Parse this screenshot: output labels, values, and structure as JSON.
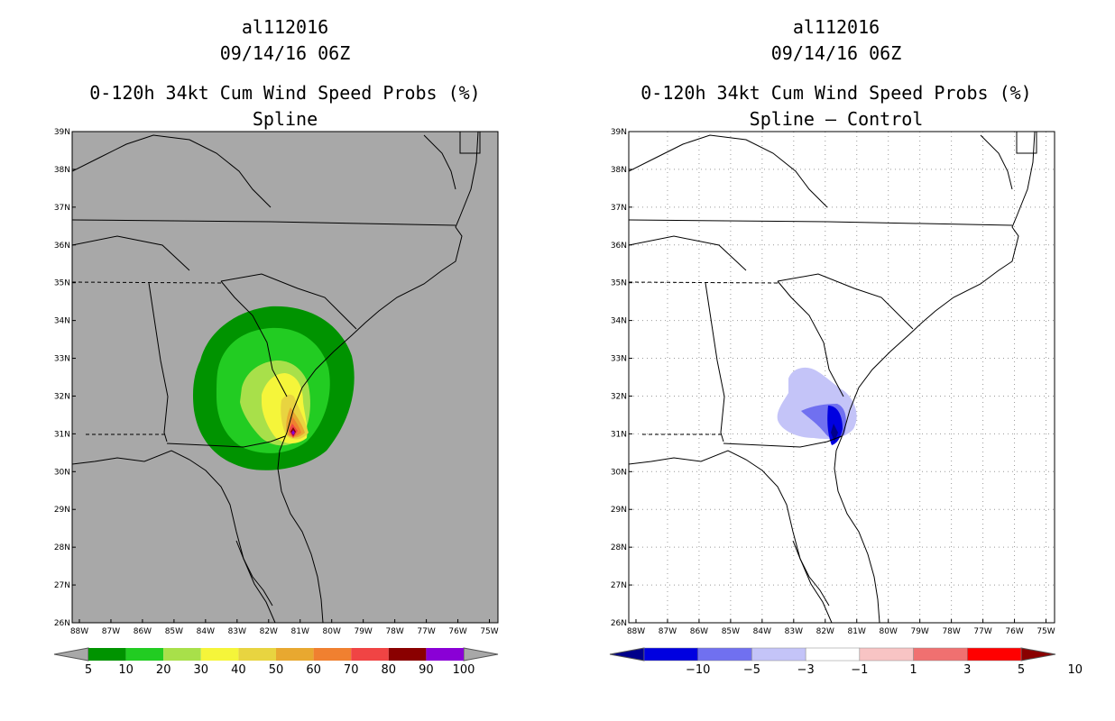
{
  "panels": [
    {
      "id": "left",
      "storm": "al112016",
      "datetime": "09/14/16 06Z",
      "product": "0-120h 34kt Cum Wind Speed Probs (%)",
      "subtitle": "Spline",
      "background": "#a8a8a8",
      "colorbar": {
        "labels": [
          "5",
          "10",
          "20",
          "30",
          "40",
          "50",
          "60",
          "70",
          "80",
          "90",
          "100"
        ],
        "colors": [
          "#009300",
          "#22cc22",
          "#a8e04a",
          "#f5f53a",
          "#e8d440",
          "#e8a830",
          "#f08030",
          "#f04444",
          "#8a0000",
          "#8a00d6"
        ],
        "under_color": "#a8a8a8",
        "over_color": "#a8a8a8"
      }
    },
    {
      "id": "right",
      "storm": "al112016",
      "datetime": "09/14/16 06Z",
      "product": "0-120h 34kt Cum Wind Speed Probs (%)",
      "subtitle": "Spline – Control",
      "background": "#ffffff",
      "colorbar": {
        "labels": [
          "−10",
          "−5",
          "−3",
          "−1",
          "1",
          "3",
          "5",
          "10"
        ],
        "colors": [
          "#0000e0",
          "#7070f0",
          "#c4c4f8",
          "#ffffff",
          "#f8c4c4",
          "#f07070",
          "#ff0000"
        ],
        "under_color": "#00008a",
        "over_color": "#8a0000"
      }
    }
  ],
  "axes": {
    "lat_labels": [
      "39N",
      "38N",
      "37N",
      "36N",
      "35N",
      "34N",
      "33N",
      "32N",
      "31N",
      "30N",
      "29N",
      "28N",
      "27N",
      "26N"
    ],
    "lon_labels": [
      "88W",
      "87W",
      "86W",
      "85W",
      "84W",
      "83W",
      "82W",
      "81W",
      "80W",
      "79W",
      "78W",
      "77W",
      "76W",
      "75W"
    ]
  }
}
